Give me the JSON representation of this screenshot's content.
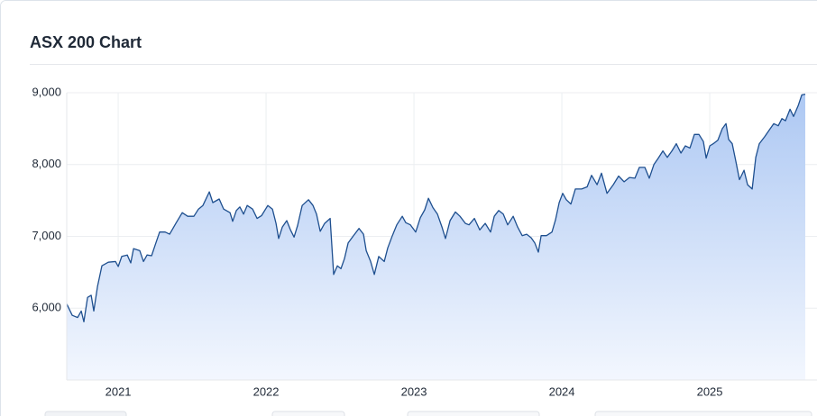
{
  "chart_data": {
    "type": "area",
    "title": "ASX 200 Chart",
    "x": [
      2020.652,
      2020.689,
      2020.726,
      2020.75,
      2020.768,
      2020.793,
      2020.817,
      2020.835,
      2020.86,
      2020.89,
      2020.933,
      2020.982,
      2021.0,
      2021.024,
      2021.061,
      2021.085,
      2021.104,
      2021.146,
      2021.171,
      2021.195,
      2021.226,
      2021.25,
      2021.28,
      2021.317,
      2021.348,
      2021.39,
      2021.433,
      2021.47,
      2021.512,
      2021.543,
      2021.573,
      2021.616,
      2021.64,
      2021.683,
      2021.713,
      2021.756,
      2021.774,
      2021.799,
      2021.823,
      2021.848,
      2021.872,
      2021.909,
      2021.939,
      2021.97,
      2022.012,
      2022.043,
      2022.067,
      2022.085,
      2022.11,
      2022.14,
      2022.165,
      2022.189,
      2022.213,
      2022.244,
      2022.287,
      2022.317,
      2022.341,
      2022.366,
      2022.396,
      2022.433,
      2022.457,
      2022.482,
      2022.506,
      2022.53,
      2022.555,
      2022.591,
      2022.628,
      2022.659,
      2022.677,
      2022.707,
      2022.732,
      2022.762,
      2022.799,
      2022.823,
      2022.854,
      2022.884,
      2022.921,
      2022.945,
      2022.976,
      2023.012,
      2023.043,
      2023.073,
      2023.098,
      2023.128,
      2023.159,
      2023.189,
      2023.213,
      2023.244,
      2023.28,
      2023.311,
      2023.348,
      2023.372,
      2023.409,
      2023.445,
      2023.482,
      2023.518,
      2023.543,
      2023.573,
      2023.604,
      2023.634,
      2023.671,
      2023.701,
      2023.732,
      2023.762,
      2023.793,
      2023.817,
      2023.841,
      2023.86,
      2023.896,
      2023.933,
      2023.957,
      2023.982,
      2024.006,
      2024.03,
      2024.061,
      2024.091,
      2024.134,
      2024.171,
      2024.201,
      2024.238,
      2024.268,
      2024.305,
      2024.348,
      2024.384,
      2024.421,
      2024.457,
      2024.494,
      2024.524,
      2024.561,
      2024.591,
      2024.622,
      2024.652,
      2024.683,
      2024.713,
      2024.744,
      2024.774,
      2024.805,
      2024.835,
      2024.866,
      2024.896,
      2024.927,
      2024.957,
      2024.976,
      2025.0,
      2025.024,
      2025.055,
      2025.085,
      2025.11,
      2025.128,
      2025.152,
      2025.177,
      2025.201,
      2025.232,
      2025.256,
      2025.287,
      2025.311,
      2025.335,
      2025.372,
      2025.402,
      2025.433,
      2025.463,
      2025.488,
      2025.512,
      2025.543,
      2025.567,
      2025.598,
      2025.622,
      2025.646
    ],
    "values": [
      6060,
      5900,
      5870,
      5960,
      5810,
      6150,
      6180,
      5960,
      6300,
      6590,
      6640,
      6650,
      6580,
      6720,
      6740,
      6630,
      6830,
      6800,
      6650,
      6740,
      6730,
      6880,
      7060,
      7060,
      7030,
      7180,
      7330,
      7280,
      7280,
      7380,
      7430,
      7620,
      7470,
      7520,
      7380,
      7330,
      7210,
      7360,
      7410,
      7310,
      7430,
      7380,
      7250,
      7290,
      7430,
      7380,
      7180,
      6970,
      7130,
      7220,
      7090,
      6990,
      7150,
      7430,
      7510,
      7430,
      7310,
      7070,
      7180,
      7250,
      6470,
      6590,
      6550,
      6690,
      6910,
      7010,
      7110,
      7030,
      6800,
      6650,
      6470,
      6720,
      6650,
      6840,
      7010,
      7160,
      7280,
      7190,
      7160,
      7060,
      7260,
      7370,
      7530,
      7400,
      7310,
      7130,
      6970,
      7220,
      7340,
      7280,
      7180,
      7160,
      7250,
      7090,
      7180,
      7060,
      7280,
      7360,
      7310,
      7160,
      7280,
      7130,
      7010,
      7030,
      6980,
      6910,
      6780,
      7010,
      7010,
      7060,
      7230,
      7470,
      7600,
      7510,
      7450,
      7660,
      7660,
      7690,
      7850,
      7720,
      7880,
      7600,
      7720,
      7840,
      7760,
      7820,
      7810,
      7960,
      7960,
      7810,
      8000,
      8090,
      8190,
      8100,
      8190,
      8290,
      8160,
      8260,
      8230,
      8420,
      8420,
      8320,
      8090,
      8260,
      8290,
      8340,
      8500,
      8570,
      8350,
      8290,
      8040,
      7790,
      7920,
      7720,
      7660,
      8100,
      8290,
      8390,
      8480,
      8570,
      8540,
      8640,
      8610,
      8770,
      8670,
      8820,
      8970,
      8980
    ],
    "color": "#1e4f8f",
    "xlim": [
      2020.652,
      2025.646
    ],
    "xticks": [
      2021,
      2022,
      2023,
      2024,
      2025
    ],
    "ylim": [
      5000,
      9000
    ],
    "yticks": [
      {
        "value": 6000,
        "label": "6,000"
      },
      {
        "value": 7000,
        "label": "7,000"
      },
      {
        "value": 8000,
        "label": "8,000"
      },
      {
        "value": 9000,
        "label": "9,000"
      }
    ],
    "grid": true
  }
}
